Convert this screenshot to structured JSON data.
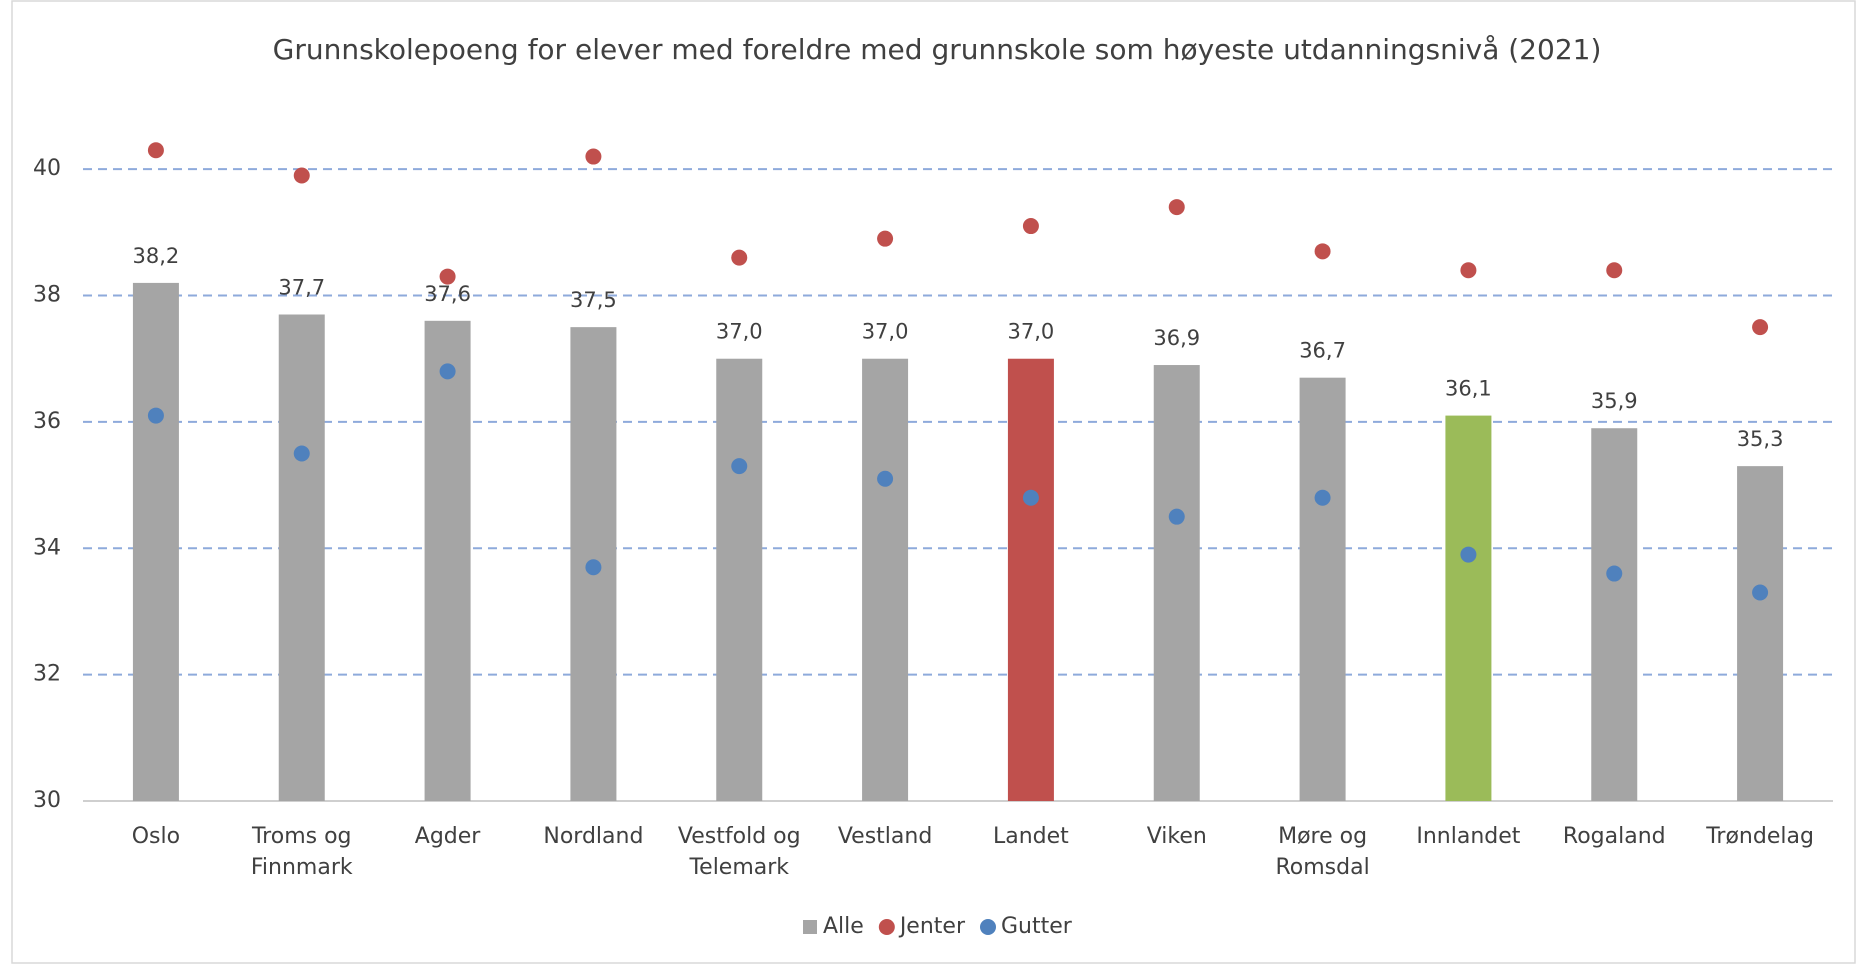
{
  "chart_data": {
    "type": "bar",
    "title": "Grunnskolepoeng for elever med foreldre med grunnskole som høyeste utdanningsnivå (2021)",
    "categories": [
      "Oslo",
      "Troms og Finnmark",
      "Agder",
      "Nordland",
      "Vestfold og Telemark",
      "Vestland",
      "Landet",
      "Viken",
      "Møre og Romsdal",
      "Innlandet",
      "Rogaland",
      "Trøndelag"
    ],
    "series": [
      {
        "name": "Alle",
        "type": "bar",
        "color": "#a5a5a5",
        "colors": [
          "#a5a5a5",
          "#a5a5a5",
          "#a5a5a5",
          "#a5a5a5",
          "#a5a5a5",
          "#a5a5a5",
          "#c0504d",
          "#a5a5a5",
          "#a5a5a5",
          "#9bbb59",
          "#a5a5a5",
          "#a5a5a5"
        ],
        "values": [
          38.2,
          37.7,
          37.6,
          37.5,
          37.0,
          37.0,
          37.0,
          36.9,
          36.7,
          36.1,
          35.9,
          35.3
        ],
        "value_labels": [
          "38,2",
          "37,7",
          "37,6",
          "37,5",
          "37,0",
          "37,0",
          "37,0",
          "36,9",
          "36,7",
          "36,1",
          "35,9",
          "35,3"
        ]
      },
      {
        "name": "Jenter",
        "type": "scatter",
        "color": "#c0504d",
        "values": [
          40.3,
          39.9,
          38.3,
          40.2,
          38.6,
          38.9,
          39.1,
          39.4,
          38.7,
          38.4,
          38.4,
          37.5
        ]
      },
      {
        "name": "Gutter",
        "type": "scatter",
        "color": "#4f81bd",
        "values": [
          36.1,
          35.5,
          36.8,
          33.7,
          35.3,
          35.1,
          34.8,
          34.5,
          34.8,
          33.9,
          33.6,
          33.3
        ]
      }
    ],
    "ylim": [
      30,
      41
    ],
    "yticks": [
      30,
      32,
      34,
      36,
      38,
      40
    ],
    "grid": true,
    "legend": "bottom"
  }
}
